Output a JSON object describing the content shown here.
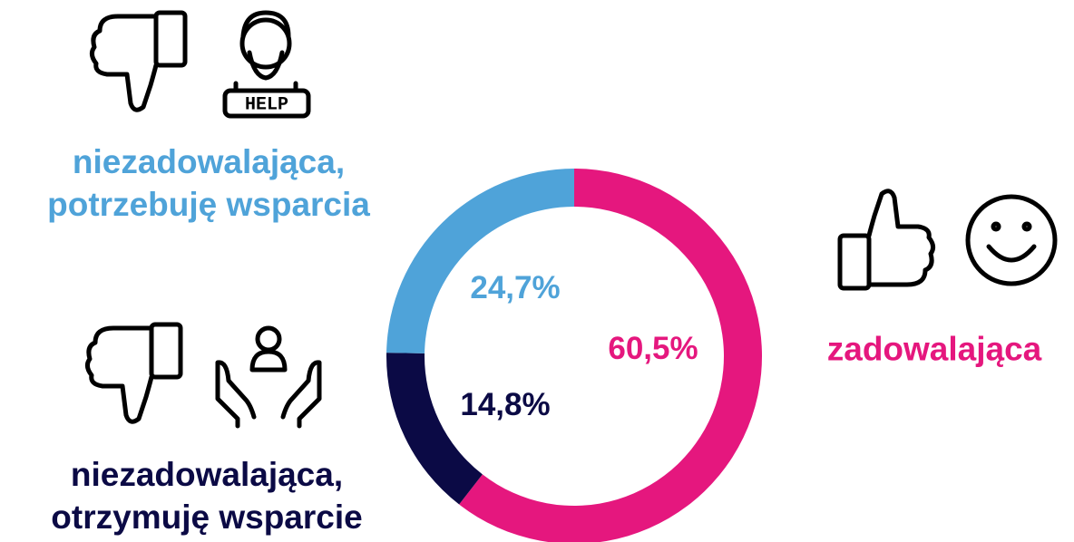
{
  "chart_data": {
    "type": "donut",
    "categories": [
      "zadowalająca",
      "niezadowalająca,\notrzymuję wsparcie",
      "niezadowalająca,\npotrzebuję wsparcia"
    ],
    "values": [
      60.5,
      14.8,
      24.7
    ],
    "value_labels": [
      "60,5%",
      "14,8%",
      "24,7%"
    ],
    "colors": [
      "#e5177e",
      "#0b0a45",
      "#4fa3d9"
    ],
    "annotations": [
      "HELP"
    ]
  }
}
